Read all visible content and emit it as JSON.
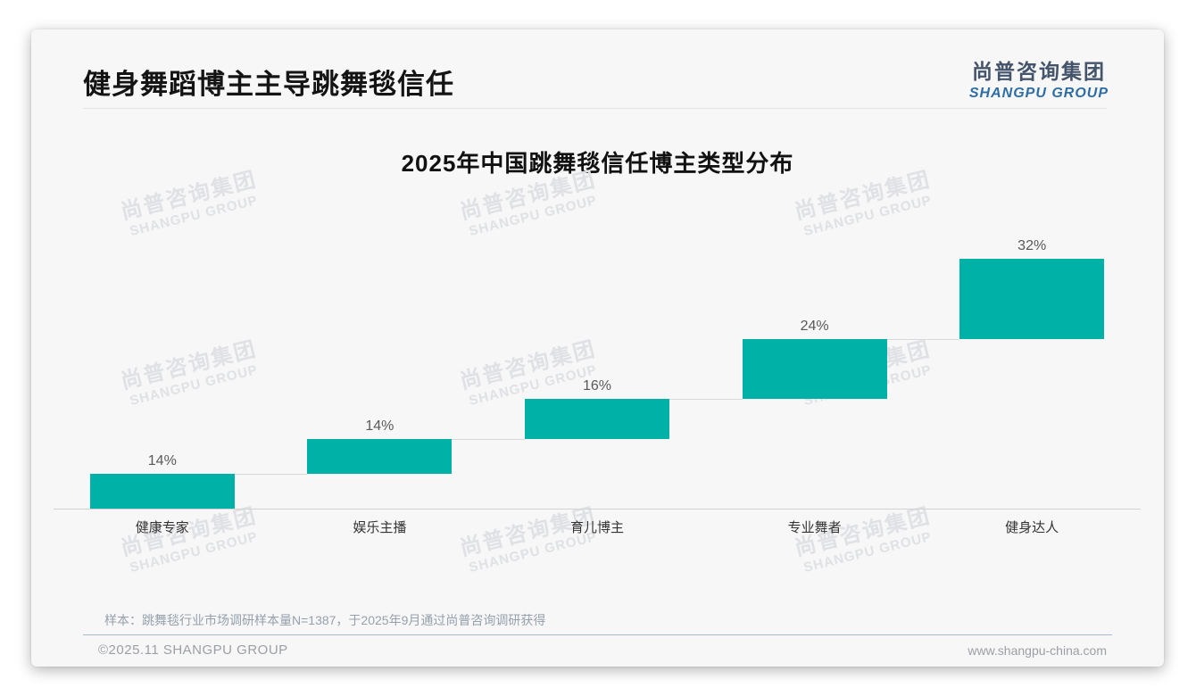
{
  "page": {
    "background": "#ffffff",
    "card_background": "#f7f7f8"
  },
  "header": {
    "title": "健身舞蹈博主主导跳舞毯信任",
    "logo": {
      "cn": "尚普咨询集团",
      "en": "SHANGPU GROUP",
      "cn_color": "#44546a",
      "en_color": "#2e6da4"
    }
  },
  "chart_data": {
    "type": "bar",
    "variant": "waterfall",
    "title": "2025年中国跳舞毯信任博主类型分布",
    "categories": [
      "健康专家",
      "娱乐主播",
      "育儿博主",
      "专业舞者",
      "健身达人"
    ],
    "values": [
      14,
      14,
      16,
      24,
      32
    ],
    "labels": [
      "14%",
      "14%",
      "16%",
      "24%",
      "32%"
    ],
    "cumulative": [
      14,
      28,
      44,
      68,
      100
    ],
    "unit": "%",
    "ylim": [
      0,
      100
    ],
    "grid": false,
    "legend": false,
    "bar_color": "#00b1a7",
    "connector_color": "#d9d9d9",
    "axis_line_color": "#d2d2d2",
    "value_label_color": "#595959",
    "category_label_color": "#333333"
  },
  "watermark": {
    "line1": "尚普咨询集团",
    "line2": "SHANGPU GROUP",
    "color": "#dfe1e5"
  },
  "footnote": {
    "text": "样本：跳舞毯行业市场调研样本量N=1387，于2025年9月通过尚普咨询调研获得"
  },
  "footer": {
    "left": "©2025.11 SHANGPU GROUP",
    "right": "www.shangpu-china.com"
  }
}
